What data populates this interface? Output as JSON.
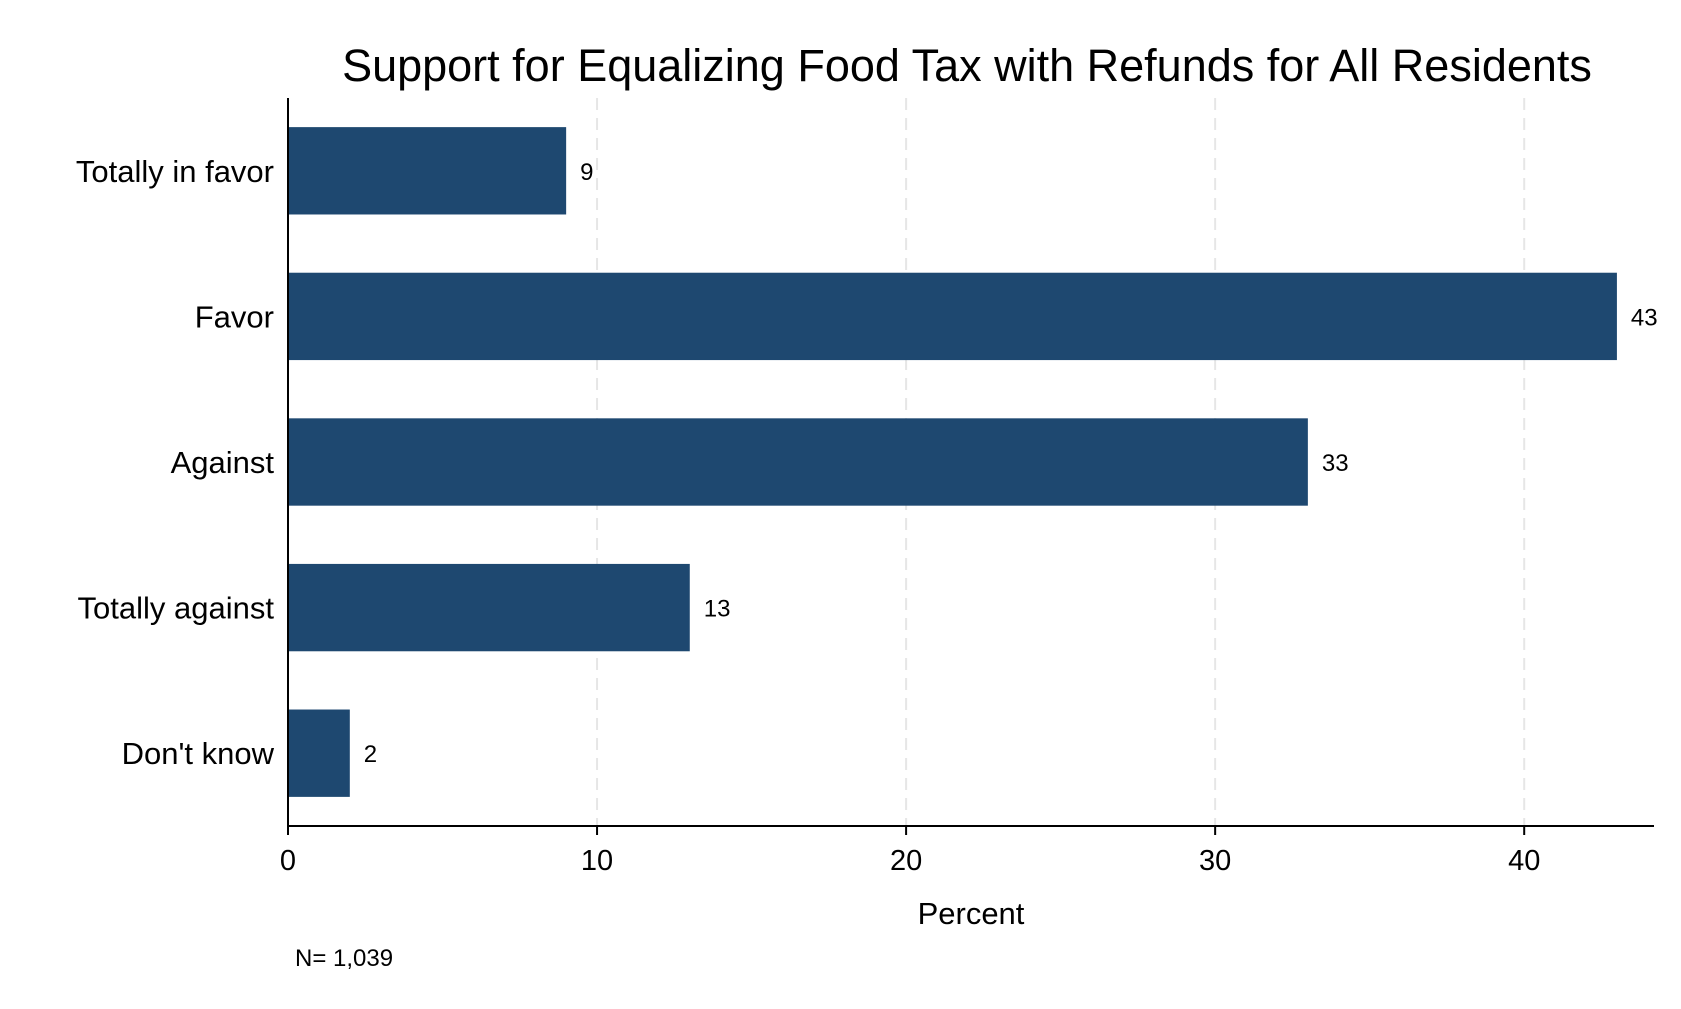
{
  "chart_data": {
    "type": "bar",
    "orientation": "horizontal",
    "title": "Support for Equalizing Food Tax with Refunds for All Residents",
    "categories": [
      "Totally in favor",
      "Favor",
      "Against",
      "Totally against",
      "Don't know"
    ],
    "values": [
      9,
      43,
      33,
      13,
      2
    ],
    "xlabel": "Percent",
    "ylabel": "",
    "xlim": [
      0,
      44.2
    ],
    "xticks": [
      0,
      10,
      20,
      30,
      40
    ],
    "grid": "vertical dashed",
    "legend": "none",
    "bar_color": "#1e4870",
    "note": "N= 1,039"
  }
}
